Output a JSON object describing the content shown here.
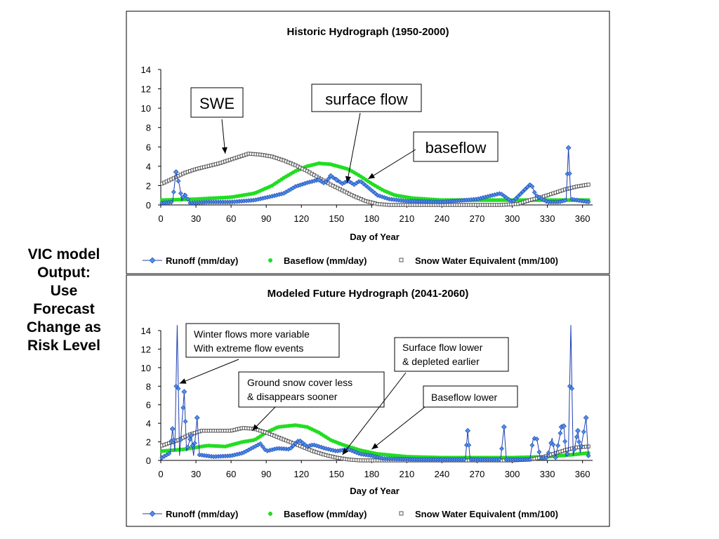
{
  "side_caption": [
    "VIC model",
    "Output:",
    "Use",
    "Forecast",
    "Change as",
    "Risk Level"
  ],
  "colors": {
    "runoff": "#1f3fb0",
    "runoff_marker": "#4a90e8",
    "baseflow": "#22dd22",
    "swe": "#555555",
    "swe_fill": "#ffffff"
  },
  "chart_data": [
    {
      "type": "line",
      "title": "Historic Hydrograph (1950-2000)",
      "xlabel": "Day of Year",
      "ylabel": "",
      "xlim": [
        0,
        365
      ],
      "ylim": [
        0,
        14
      ],
      "xticks": [
        0,
        30,
        60,
        90,
        120,
        150,
        180,
        210,
        240,
        270,
        300,
        330,
        360
      ],
      "yticks": [
        0,
        2,
        4,
        6,
        8,
        10,
        12,
        14
      ],
      "grid": false,
      "legend": [
        "Runoff (mm/day)",
        "Baseflow (mm/day)",
        "Snow Water Equivalent (mm/100)"
      ],
      "legend_position": "bottom",
      "series": [
        {
          "name": "Runoff (mm/day)",
          "points": [
            [
              1,
              0.2
            ],
            [
              10,
              0.3
            ],
            [
              13,
              3.4
            ],
            [
              16,
              2.0
            ],
            [
              18,
              0.4
            ],
            [
              20,
              1.2
            ],
            [
              25,
              0.2
            ],
            [
              40,
              0.3
            ],
            [
              60,
              0.3
            ],
            [
              80,
              0.5
            ],
            [
              95,
              0.9
            ],
            [
              105,
              1.2
            ],
            [
              115,
              1.9
            ],
            [
              125,
              2.3
            ],
            [
              135,
              2.6
            ],
            [
              140,
              2.2
            ],
            [
              145,
              3.0
            ],
            [
              150,
              2.6
            ],
            [
              155,
              2.2
            ],
            [
              160,
              2.5
            ],
            [
              165,
              2.1
            ],
            [
              170,
              2.5
            ],
            [
              175,
              2.0
            ],
            [
              185,
              1.0
            ],
            [
              195,
              0.6
            ],
            [
              210,
              0.4
            ],
            [
              240,
              0.3
            ],
            [
              270,
              0.6
            ],
            [
              290,
              1.2
            ],
            [
              300,
              0.3
            ],
            [
              316,
              2.2
            ],
            [
              320,
              1.0
            ],
            [
              330,
              0.3
            ],
            [
              340,
              0.3
            ],
            [
              346,
              0.5
            ],
            [
              348,
              5.9
            ],
            [
              350,
              0.6
            ],
            [
              365,
              0.3
            ]
          ]
        },
        {
          "name": "Baseflow (mm/day)",
          "points": [
            [
              1,
              0.5
            ],
            [
              30,
              0.6
            ],
            [
              60,
              0.8
            ],
            [
              80,
              1.2
            ],
            [
              95,
              2.0
            ],
            [
              105,
              2.8
            ],
            [
              115,
              3.5
            ],
            [
              125,
              4.0
            ],
            [
              135,
              4.3
            ],
            [
              145,
              4.2
            ],
            [
              160,
              3.7
            ],
            [
              170,
              3.0
            ],
            [
              180,
              2.2
            ],
            [
              190,
              1.5
            ],
            [
              200,
              1.0
            ],
            [
              215,
              0.7
            ],
            [
              240,
              0.5
            ],
            [
              270,
              0.5
            ],
            [
              300,
              0.5
            ],
            [
              330,
              0.5
            ],
            [
              365,
              0.5
            ]
          ]
        },
        {
          "name": "Snow Water Equivalent (mm/100)",
          "points": [
            [
              1,
              2.2
            ],
            [
              10,
              2.7
            ],
            [
              20,
              3.3
            ],
            [
              30,
              3.7
            ],
            [
              40,
              4.0
            ],
            [
              50,
              4.3
            ],
            [
              60,
              4.7
            ],
            [
              70,
              5.1
            ],
            [
              75,
              5.3
            ],
            [
              85,
              5.2
            ],
            [
              95,
              5.0
            ],
            [
              105,
              4.6
            ],
            [
              115,
              4.1
            ],
            [
              125,
              3.5
            ],
            [
              135,
              2.8
            ],
            [
              145,
              2.1
            ],
            [
              155,
              1.5
            ],
            [
              165,
              0.9
            ],
            [
              175,
              0.4
            ],
            [
              185,
              0.1
            ],
            [
              195,
              0.0
            ],
            [
              290,
              0.0
            ],
            [
              305,
              0.1
            ],
            [
              315,
              0.5
            ],
            [
              325,
              0.8
            ],
            [
              335,
              1.2
            ],
            [
              345,
              1.6
            ],
            [
              355,
              1.9
            ],
            [
              365,
              2.1
            ]
          ]
        }
      ],
      "annotations": [
        {
          "text": [
            "SWE"
          ],
          "target": [
            55,
            5.3
          ]
        },
        {
          "text": [
            "surface flow"
          ],
          "target": [
            159,
            2.3
          ]
        },
        {
          "text": [
            "baseflow"
          ],
          "target": [
            177,
            2.7
          ]
        }
      ]
    },
    {
      "type": "line",
      "title": "Modeled Future Hydrograph (2041-2060)",
      "xlabel": "Day of Year",
      "ylabel": "",
      "xlim": [
        0,
        365
      ],
      "ylim": [
        0,
        14
      ],
      "xticks": [
        0,
        30,
        60,
        90,
        120,
        150,
        180,
        210,
        240,
        270,
        300,
        330,
        360
      ],
      "yticks": [
        0,
        2,
        4,
        6,
        8,
        10,
        12,
        14
      ],
      "grid": false,
      "legend": [
        "Runoff (mm/day)",
        "Baseflow (mm/day)",
        "Snow Water Equivalent (mm/100)"
      ],
      "legend_position": "bottom",
      "series": [
        {
          "name": "Runoff (mm/day)",
          "points": [
            [
              1,
              0.3
            ],
            [
              8,
              0.8
            ],
            [
              10,
              3.4
            ],
            [
              12,
              1.0
            ],
            [
              14,
              15.0
            ],
            [
              16,
              0.5
            ],
            [
              20,
              7.4
            ],
            [
              22,
              1.0
            ],
            [
              26,
              2.7
            ],
            [
              28,
              0.5
            ],
            [
              31,
              4.6
            ],
            [
              33,
              0.6
            ],
            [
              45,
              0.4
            ],
            [
              60,
              0.5
            ],
            [
              70,
              0.8
            ],
            [
              85,
              1.8
            ],
            [
              90,
              1.0
            ],
            [
              100,
              1.3
            ],
            [
              110,
              1.2
            ],
            [
              118,
              2.2
            ],
            [
              125,
              1.5
            ],
            [
              130,
              1.7
            ],
            [
              140,
              1.3
            ],
            [
              150,
              1.0
            ],
            [
              160,
              1.2
            ],
            [
              170,
              0.7
            ],
            [
              180,
              0.5
            ],
            [
              190,
              0.2
            ],
            [
              220,
              0.1
            ],
            [
              260,
              0.1
            ],
            [
              262,
              3.2
            ],
            [
              264,
              0.1
            ],
            [
              290,
              0.1
            ],
            [
              293,
              3.6
            ],
            [
              295,
              0.1
            ],
            [
              315,
              0.1
            ],
            [
              318,
              2.4
            ],
            [
              321,
              2.3
            ],
            [
              324,
              0.2
            ],
            [
              330,
              0.3
            ],
            [
              334,
              2.4
            ],
            [
              337,
              0.3
            ],
            [
              339,
              1.6
            ],
            [
              342,
              3.6
            ],
            [
              344,
              3.7
            ],
            [
              346,
              0.4
            ],
            [
              348,
              1.0
            ],
            [
              350,
              15.0
            ],
            [
              352,
              0.5
            ],
            [
              356,
              3.2
            ],
            [
              358,
              0.8
            ],
            [
              363,
              4.6
            ],
            [
              365,
              0.5
            ]
          ]
        },
        {
          "name": "Baseflow (mm/day)",
          "points": [
            [
              1,
              1.0
            ],
            [
              20,
              1.2
            ],
            [
              40,
              1.6
            ],
            [
              55,
              1.5
            ],
            [
              70,
              2.0
            ],
            [
              80,
              2.2
            ],
            [
              90,
              3.0
            ],
            [
              100,
              3.6
            ],
            [
              115,
              3.8
            ],
            [
              125,
              3.6
            ],
            [
              135,
              3.0
            ],
            [
              145,
              2.2
            ],
            [
              155,
              1.7
            ],
            [
              170,
              1.1
            ],
            [
              185,
              0.7
            ],
            [
              210,
              0.4
            ],
            [
              240,
              0.3
            ],
            [
              270,
              0.3
            ],
            [
              300,
              0.3
            ],
            [
              330,
              0.4
            ],
            [
              350,
              0.6
            ],
            [
              365,
              0.8
            ]
          ]
        },
        {
          "name": "Snow Water Equivalent (mm/100)",
          "points": [
            [
              1,
              1.6
            ],
            [
              15,
              2.2
            ],
            [
              25,
              2.8
            ],
            [
              35,
              3.2
            ],
            [
              50,
              3.2
            ],
            [
              60,
              3.2
            ],
            [
              70,
              3.5
            ],
            [
              80,
              3.4
            ],
            [
              90,
              3.0
            ],
            [
              100,
              2.5
            ],
            [
              110,
              2.0
            ],
            [
              120,
              1.5
            ],
            [
              130,
              1.0
            ],
            [
              140,
              0.6
            ],
            [
              150,
              0.3
            ],
            [
              160,
              0.1
            ],
            [
              170,
              0.0
            ],
            [
              300,
              0.0
            ],
            [
              315,
              0.1
            ],
            [
              325,
              0.3
            ],
            [
              335,
              0.7
            ],
            [
              345,
              1.1
            ],
            [
              355,
              1.4
            ],
            [
              365,
              1.5
            ]
          ]
        }
      ],
      "annotations": [
        {
          "text": [
            "Winter flows more variable",
            "With extreme flow events"
          ],
          "target": [
            16,
            8.3
          ]
        },
        {
          "text": [
            "Ground snow cover less",
            "& disappears sooner"
          ],
          "target": [
            78,
            3.2
          ]
        },
        {
          "text": [
            "Surface flow lower",
            "& depleted earlier"
          ],
          "target": [
            155,
            0.6
          ]
        },
        {
          "text": [
            "Baseflow lower"
          ],
          "target": [
            180,
            1.2
          ]
        }
      ]
    }
  ]
}
